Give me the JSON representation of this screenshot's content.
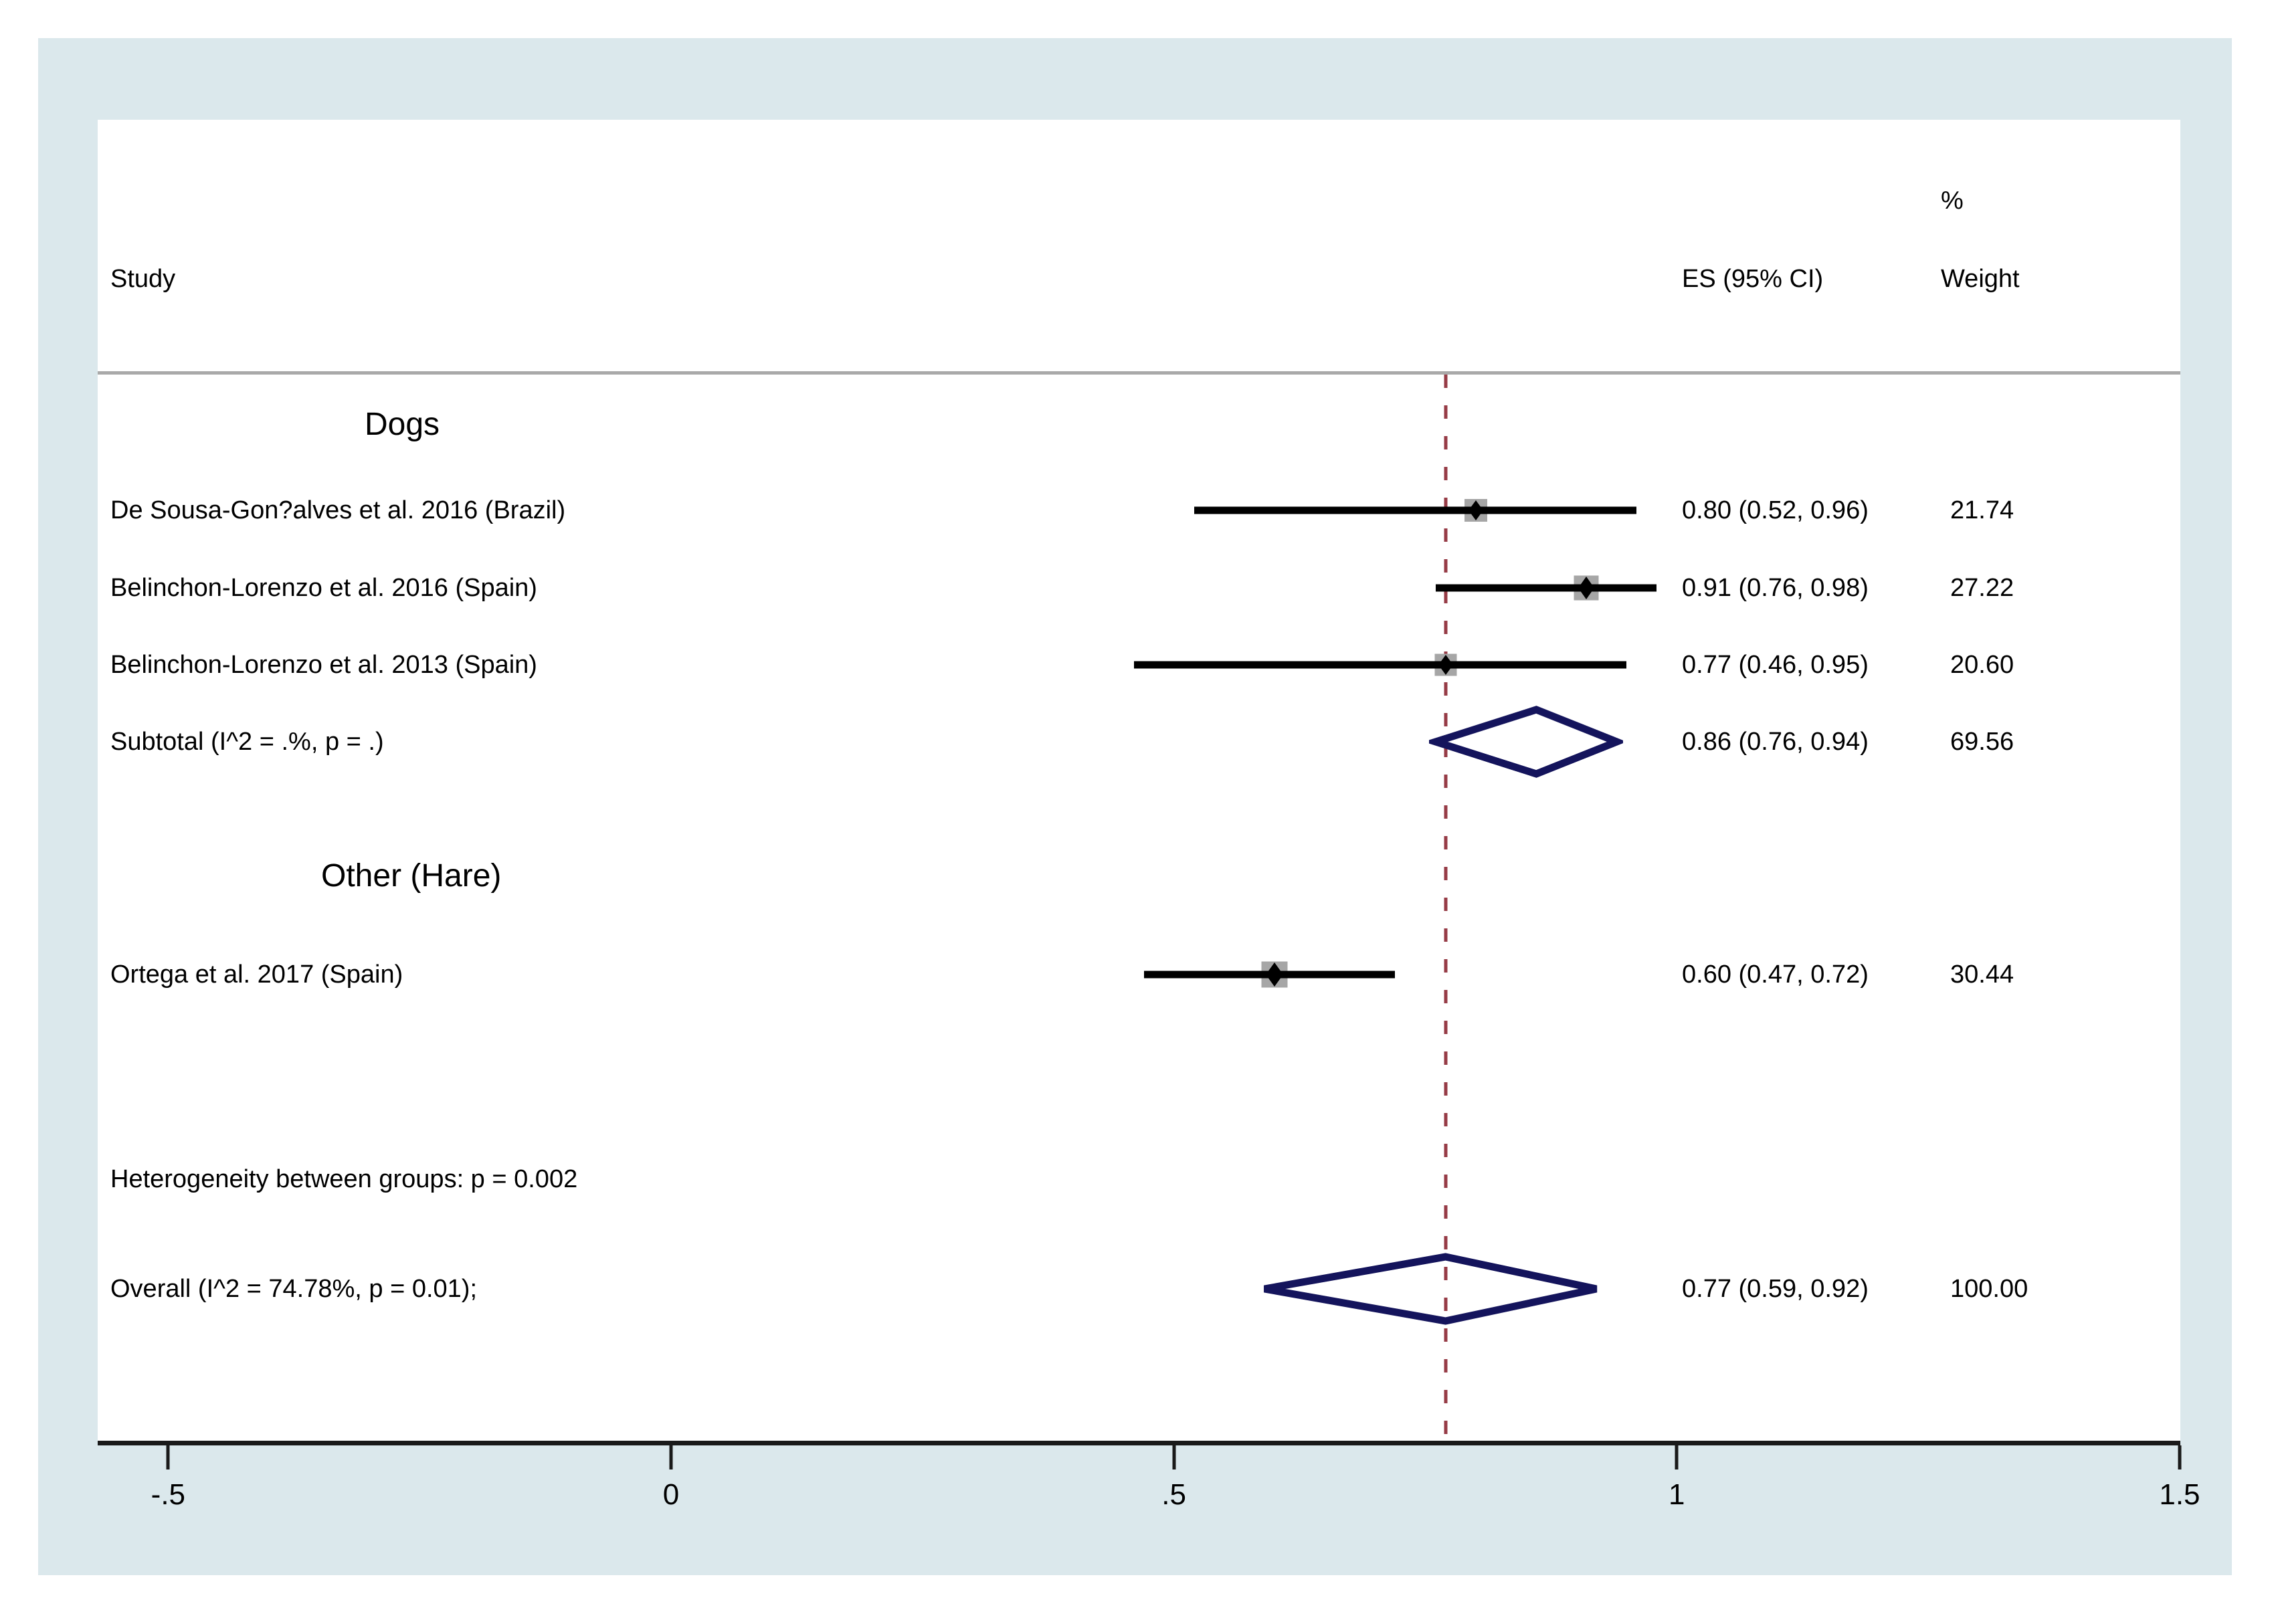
{
  "header": {
    "percent": "%",
    "study": "Study",
    "es_ci": "ES (95% CI)",
    "weight": "Weight"
  },
  "chart_data": {
    "type": "forest",
    "title": "",
    "x_axis": {
      "ticks": [
        -0.5,
        0,
        0.5,
        1,
        1.5
      ],
      "tick_labels": [
        "-.5",
        "0",
        ".5",
        "1",
        "1.5"
      ],
      "xlim": [
        -0.57,
        1.5
      ],
      "grid": false
    },
    "reference_line": {
      "value": 0.77,
      "style": "dashed"
    },
    "rows": [
      {
        "kind": "group",
        "label": "Dogs"
      },
      {
        "kind": "study",
        "label": "De Sousa-Gon?alves et al. 2016 (Brazil)",
        "es": 0.8,
        "lo": 0.52,
        "hi": 0.96,
        "weight": 21.74,
        "es_text": "0.80 (0.52, 0.96)",
        "weight_text": "21.74"
      },
      {
        "kind": "study",
        "label": "Belinchon-Lorenzo et al. 2016 (Spain)",
        "es": 0.91,
        "lo": 0.76,
        "hi": 0.98,
        "weight": 27.22,
        "es_text": "0.91 (0.76, 0.98)",
        "weight_text": "27.22"
      },
      {
        "kind": "study",
        "label": "Belinchon-Lorenzo et al. 2013 (Spain)",
        "es": 0.77,
        "lo": 0.46,
        "hi": 0.95,
        "weight": 20.6,
        "es_text": "0.77 (0.46, 0.95)",
        "weight_text": "20.60"
      },
      {
        "kind": "pooled",
        "label": "Subtotal  (I^2 = .%, p = .)",
        "es": 0.86,
        "lo": 0.76,
        "hi": 0.94,
        "weight": 69.56,
        "es_text": "0.86 (0.76, 0.94)",
        "weight_text": "69.56"
      },
      {
        "kind": "group",
        "label": "Other (Hare)"
      },
      {
        "kind": "study",
        "label": "Ortega et al. 2017 (Spain)",
        "es": 0.6,
        "lo": 0.47,
        "hi": 0.72,
        "weight": 30.44,
        "es_text": "0.60 (0.47, 0.72)",
        "weight_text": "30.44"
      },
      {
        "kind": "note",
        "label": "Heterogeneity between groups: p = 0.002"
      },
      {
        "kind": "pooled",
        "label": "Overall  (I^2 = 74.78%, p = 0.01);",
        "es": 0.77,
        "lo": 0.59,
        "hi": 0.92,
        "weight": 100.0,
        "es_text": "0.77 (0.59, 0.92)",
        "weight_text": "100.00"
      }
    ]
  },
  "colors": {
    "frame_background": "#dbe8ec",
    "plot_background": "#ffffff",
    "pooled_diamond": "#14145c",
    "reference_line": "#963b46",
    "marker_square": "#a6a6a6",
    "ci_line": "#000000",
    "header_separator": "#a9a9a9",
    "axis": "#1a1a1a"
  }
}
